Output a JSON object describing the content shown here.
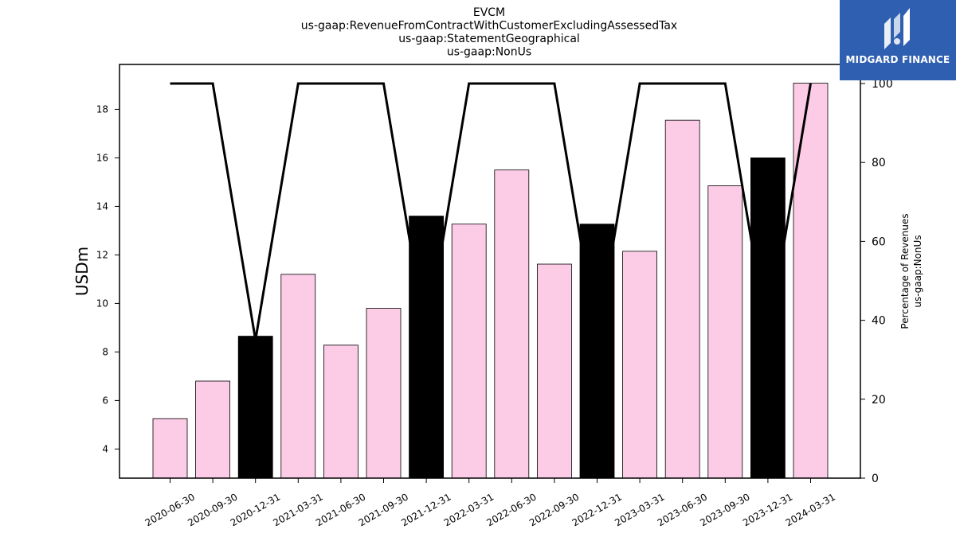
{
  "titles": [
    "EVCM",
    "us-gaap:RevenueFromContractWithCustomerExcludingAssessedTax",
    "us-gaap:StatementGeographical",
    "us-gaap:NonUs"
  ],
  "logo": {
    "text": "MIDGARD FINANCE",
    "icon": "midgard-logo-icon",
    "background": "#2f5fb0"
  },
  "chart_data": {
    "type": "bar",
    "categories": [
      "2020-06-30",
      "2020-09-30",
      "2020-12-31",
      "2021-03-31",
      "2021-06-30",
      "2021-09-30",
      "2021-12-31",
      "2022-03-31",
      "2022-06-30",
      "2022-09-30",
      "2022-12-31",
      "2023-03-31",
      "2023-06-30",
      "2023-09-30",
      "2023-12-31",
      "2024-03-31"
    ],
    "values": [
      5.25,
      6.8,
      8.65,
      11.2,
      8.28,
      9.8,
      13.6,
      13.27,
      15.5,
      11.62,
      13.27,
      12.15,
      17.55,
      14.85,
      16.0,
      19.08
    ],
    "bar_colors": [
      "#fccbe6",
      "#fccbe6",
      "#000000",
      "#fccbe6",
      "#fccbe6",
      "#fccbe6",
      "#000000",
      "#fccbe6",
      "#fccbe6",
      "#fccbe6",
      "#000000",
      "#fccbe6",
      "#fccbe6",
      "#fccbe6",
      "#000000",
      "#fccbe6"
    ],
    "line": {
      "values": [
        100,
        100,
        35,
        100,
        100,
        100,
        35,
        100,
        100,
        100,
        35,
        100,
        100,
        100,
        35,
        100
      ],
      "color": "#000000"
    },
    "ylabel": "USDm",
    "y2label": [
      "Percentage of Revenues",
      "us-gaap:NonUs"
    ],
    "ylim": [
      2.8,
      19.85
    ],
    "y2lim": [
      0,
      100
    ],
    "yticks": [
      4,
      6,
      8,
      10,
      12,
      14,
      16,
      18
    ],
    "y2ticks": [
      0,
      20,
      40,
      60,
      80,
      100
    ],
    "grid": false
  }
}
